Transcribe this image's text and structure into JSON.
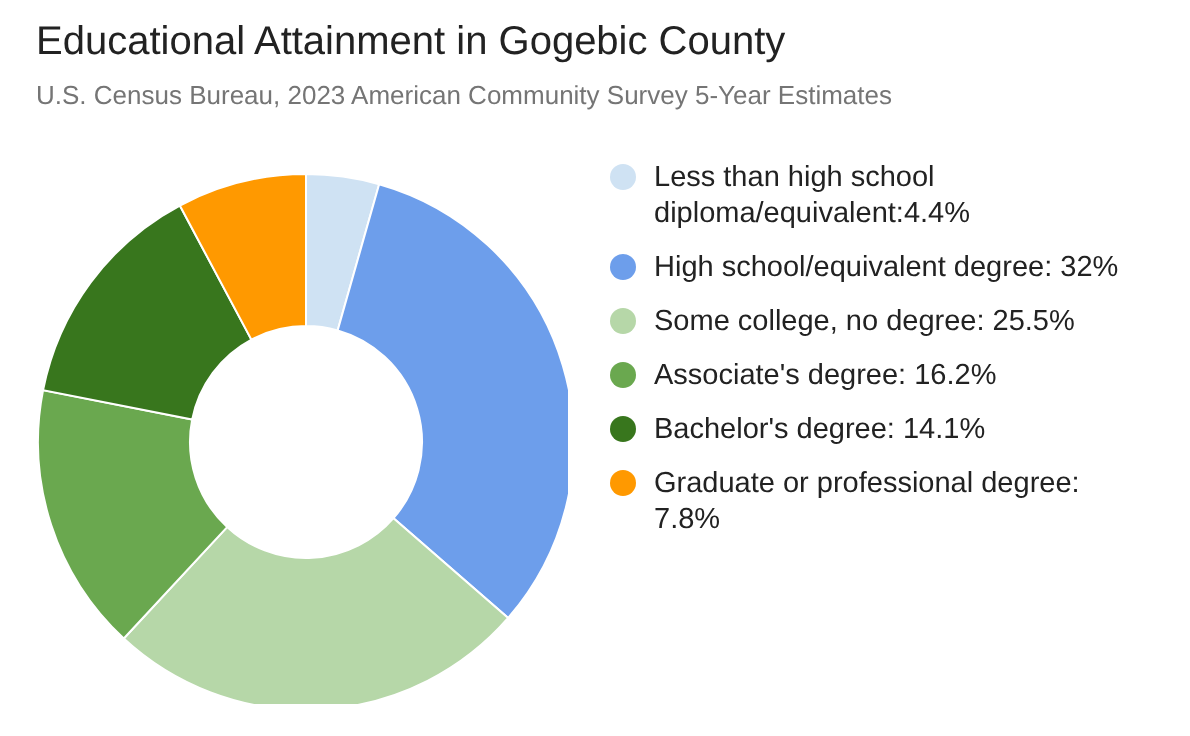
{
  "chart_data": {
    "type": "donut",
    "title": "Educational Attainment in Gogebic County",
    "subtitle": "U.S. Census Bureau, 2023 American Community Survey 5-Year Estimates",
    "categories": [
      "Less than high school diploma/equivalent:4.4%",
      "High school/equivalent degree: 32%",
      "Some college, no degree: 25.5%",
      "Associate's degree: 16.2%",
      "Bachelor's degree: 14.1%",
      "Graduate or professional degree: 7.8%"
    ],
    "values": [
      4.4,
      32,
      25.5,
      16.2,
      14.1,
      7.8
    ],
    "colors": [
      "#cfe2f3",
      "#6d9eeb",
      "#b6d7a8",
      "#6aa84f",
      "#38761d",
      "#ff9900"
    ],
    "legend": "right"
  }
}
